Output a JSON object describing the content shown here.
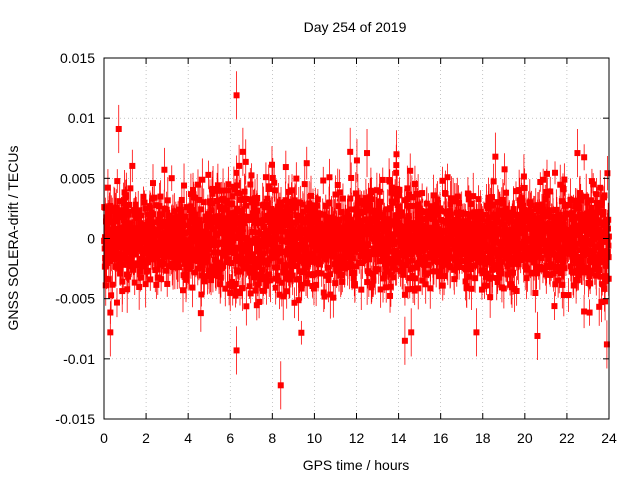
{
  "chart_data": {
    "type": "scatter",
    "title": "Day 254 of 2019",
    "xlabel": "GPS time / hours",
    "ylabel": "GNSS SOLERA-drift / TECUs",
    "xlim": [
      0,
      24
    ],
    "ylim": [
      -0.015,
      0.015
    ],
    "x_ticks": [
      0,
      2,
      4,
      6,
      8,
      10,
      12,
      14,
      16,
      18,
      20,
      22,
      24
    ],
    "y_ticks": [
      -0.015,
      -0.01,
      -0.005,
      0,
      0.005,
      0.01,
      0.015
    ],
    "y_tick_labels": [
      "-0.015",
      "-0.01",
      "-0.005",
      "0",
      "0.005",
      "0.01",
      "0.015"
    ],
    "grid": true,
    "series_color": "#ff0000",
    "error_bars": true,
    "notable_points": [
      {
        "x": 0.7,
        "y": 0.0091
      },
      {
        "x": 6.3,
        "y": 0.0119
      },
      {
        "x": 6.6,
        "y": 0.0072
      },
      {
        "x": 8.4,
        "y": -0.0122
      },
      {
        "x": 6.3,
        "y": -0.0093
      },
      {
        "x": 23.9,
        "y": -0.0088
      },
      {
        "x": 14.3,
        "y": -0.0085
      },
      {
        "x": 20.6,
        "y": -0.0081
      },
      {
        "x": 11.7,
        "y": 0.0072
      },
      {
        "x": 12.5,
        "y": 0.0071
      },
      {
        "x": 13.9,
        "y": 0.007
      },
      {
        "x": 18.6,
        "y": 0.0068
      },
      {
        "x": 22.5,
        "y": 0.0071
      },
      {
        "x": 0.3,
        "y": -0.0078
      },
      {
        "x": 14.6,
        "y": -0.0078
      },
      {
        "x": 17.7,
        "y": -0.0078
      }
    ],
    "density_profile": {
      "hours": [
        0,
        2,
        4,
        6,
        7,
        8,
        9,
        10,
        12,
        14,
        16,
        18,
        20,
        22,
        24
      ],
      "typical_spread": [
        0.0045,
        0.004,
        0.004,
        0.0048,
        0.0052,
        0.0055,
        0.005,
        0.0042,
        0.0042,
        0.0045,
        0.0042,
        0.004,
        0.0042,
        0.0045,
        0.0048
      ]
    },
    "num_points": 2800
  }
}
